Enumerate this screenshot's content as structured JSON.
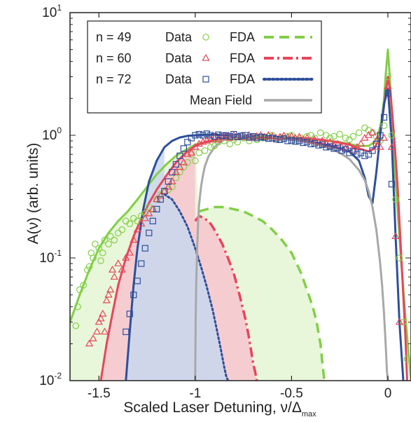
{
  "chart_data": {
    "type": "line",
    "title": "",
    "xlabel": "Scaled Laser Detuning, ν/Δ",
    "xlabel_sub": "max",
    "ylabel": "A(ν) (arb. units)",
    "xlim": [
      -1.65,
      0.12
    ],
    "ylim": [
      0.01,
      10
    ],
    "yscale": "log",
    "grid": false,
    "x_ticks": [
      -1.5,
      -1,
      -0.5,
      0
    ],
    "x_tick_labels": [
      "-1.5",
      "-1",
      "-0.5",
      "0"
    ],
    "y_ticks": [
      {
        "value": 0.01,
        "base": "10",
        "exp": "-2"
      },
      {
        "value": 0.1,
        "base": "10",
        "exp": "-1"
      },
      {
        "value": 1,
        "base": "10",
        "exp": "0"
      },
      {
        "value": 10,
        "base": "10",
        "exp": "1"
      }
    ],
    "legend_position": "top-left",
    "legend_rows": [
      {
        "n_label": "n = 49",
        "data_label": "Data",
        "fda_label": "FDA",
        "marker": "circle",
        "line": "dashed",
        "color": "#82cf47"
      },
      {
        "n_label": "n = 60",
        "data_label": "Data",
        "fda_label": "FDA",
        "marker": "triangle",
        "line": "dashdot",
        "color": "#e8455a"
      },
      {
        "n_label": "n = 72",
        "data_label": "Data",
        "fda_label": "FDA",
        "marker": "square",
        "line": "dotted",
        "color": "#2e4f9b"
      },
      {
        "n_label": "",
        "data_label": "",
        "fda_label": "Mean Field",
        "marker": "none",
        "line": "solid",
        "color": "#a8a8a8"
      }
    ],
    "series": [
      {
        "name": "n = 49 Data",
        "kind": "scatter",
        "marker": "circle",
        "color": "#82cf47",
        "x": [
          -1.62,
          -1.61,
          -1.6,
          -1.58,
          -1.56,
          -1.55,
          -1.54,
          -1.53,
          -1.52,
          -1.5,
          -1.49,
          -1.48,
          -1.47,
          -1.45,
          -1.44,
          -1.42,
          -1.4,
          -1.38,
          -1.36,
          -1.34,
          -1.32,
          -1.3,
          -1.28,
          -1.26,
          -1.24,
          -1.22,
          -1.2,
          -1.18,
          -1.16,
          -1.14,
          -1.12,
          -1.1,
          -1.08,
          -1.06,
          -1.04,
          -1.02,
          -1.0,
          -0.98,
          -0.95,
          -0.92,
          -0.9,
          -0.88,
          -0.85,
          -0.82,
          -0.8,
          -0.78,
          -0.75,
          -0.72,
          -0.7,
          -0.68,
          -0.65,
          -0.62,
          -0.6,
          -0.58,
          -0.55,
          -0.52,
          -0.5,
          -0.48,
          -0.45,
          -0.42,
          -0.4,
          -0.38,
          -0.35,
          -0.32,
          -0.3,
          -0.28,
          -0.25,
          -0.22,
          -0.2,
          -0.18,
          -0.15,
          -0.12,
          -0.1,
          -0.08,
          -0.06,
          -0.04,
          -0.02,
          0.0,
          0.02,
          0.04,
          0.06,
          0.08,
          0.1
        ],
        "y": [
          0.028,
          0.04,
          0.055,
          0.06,
          0.08,
          0.085,
          0.11,
          0.1,
          0.13,
          0.12,
          0.095,
          0.11,
          0.14,
          0.13,
          0.15,
          0.14,
          0.16,
          0.17,
          0.2,
          0.19,
          0.21,
          0.2,
          0.22,
          0.23,
          0.26,
          0.25,
          0.3,
          0.33,
          0.35,
          0.36,
          0.38,
          0.45,
          0.5,
          0.55,
          0.6,
          0.7,
          0.62,
          0.72,
          0.75,
          0.8,
          0.82,
          0.88,
          0.9,
          0.85,
          0.92,
          0.88,
          0.95,
          0.9,
          0.98,
          0.92,
          0.95,
          0.98,
          1.0,
          0.93,
          0.96,
          0.98,
          1.0,
          0.92,
          0.95,
          0.98,
          1.0,
          0.95,
          1.05,
          1.0,
          0.95,
          0.98,
          1.02,
          0.95,
          0.92,
          0.98,
          1.05,
          1.15,
          1.1,
          1.05,
          0.98,
          0.9,
          1.2,
          3.0,
          1.0,
          0.3,
          0.1,
          0.03,
          0.015
        ]
      },
      {
        "name": "n = 60 Data",
        "kind": "scatter",
        "marker": "triangle",
        "color": "#e8455a",
        "x": [
          -1.55,
          -1.53,
          -1.51,
          -1.5,
          -1.49,
          -1.48,
          -1.47,
          -1.46,
          -1.45,
          -1.44,
          -1.43,
          -1.42,
          -1.4,
          -1.38,
          -1.36,
          -1.34,
          -1.32,
          -1.3,
          -1.28,
          -1.26,
          -1.24,
          -1.22,
          -1.2,
          -1.18,
          -1.16,
          -1.14,
          -1.12,
          -1.1,
          -1.08,
          -1.06,
          -1.04,
          -1.02,
          -1.0,
          -0.98,
          -0.96,
          -0.94,
          -0.92,
          -0.9,
          -0.88,
          -0.86,
          -0.84,
          -0.82,
          -0.8,
          -0.78,
          -0.76,
          -0.74,
          -0.72,
          -0.7,
          -0.68,
          -0.66,
          -0.64,
          -0.62,
          -0.6,
          -0.58,
          -0.56,
          -0.54,
          -0.52,
          -0.5,
          -0.48,
          -0.46,
          -0.44,
          -0.42,
          -0.4,
          -0.38,
          -0.36,
          -0.34,
          -0.32,
          -0.3,
          -0.28,
          -0.26,
          -0.24,
          -0.22,
          -0.2,
          -0.18,
          -0.16,
          -0.14,
          -0.12,
          -0.1,
          -0.08,
          -0.06,
          -0.04,
          -0.02,
          0.0,
          0.02,
          0.04,
          0.06
        ],
        "y": [
          0.02,
          0.022,
          0.025,
          0.03,
          0.032,
          0.035,
          0.025,
          0.045,
          0.05,
          0.055,
          0.08,
          0.07,
          0.09,
          0.08,
          0.1,
          0.11,
          0.14,
          0.17,
          0.19,
          0.21,
          0.23,
          0.25,
          0.3,
          0.32,
          0.35,
          0.38,
          0.42,
          0.5,
          0.55,
          0.6,
          0.7,
          0.72,
          0.8,
          0.85,
          0.88,
          0.9,
          0.92,
          0.95,
          0.92,
          0.96,
          0.98,
          0.95,
          1.0,
          0.97,
          0.99,
          0.96,
          1.0,
          0.95,
          0.98,
          1.0,
          0.97,
          1.0,
          0.98,
          0.95,
          0.97,
          0.99,
          0.96,
          0.98,
          0.95,
          0.97,
          0.92,
          0.95,
          0.9,
          0.92,
          0.88,
          0.9,
          0.85,
          0.88,
          0.82,
          0.85,
          0.8,
          0.78,
          0.82,
          0.75,
          0.8,
          0.85,
          0.95,
          1.0,
          1.05,
          0.9,
          0.8,
          0.95,
          2.5,
          0.8,
          0.15,
          0.03
        ]
      },
      {
        "name": "n = 72 Data",
        "kind": "scatter",
        "marker": "square",
        "color": "#2e4f9b",
        "x": [
          -1.36,
          -1.34,
          -1.32,
          -1.3,
          -1.28,
          -1.26,
          -1.24,
          -1.22,
          -1.2,
          -1.18,
          -1.16,
          -1.14,
          -1.12,
          -1.1,
          -1.08,
          -1.06,
          -1.04,
          -1.02,
          -1.0,
          -0.98,
          -0.96,
          -0.94,
          -0.92,
          -0.9,
          -0.88,
          -0.86,
          -0.84,
          -0.82,
          -0.8,
          -0.78,
          -0.76,
          -0.74,
          -0.72,
          -0.7,
          -0.68,
          -0.66,
          -0.64,
          -0.62,
          -0.6,
          -0.58,
          -0.56,
          -0.54,
          -0.52,
          -0.5,
          -0.48,
          -0.46,
          -0.44,
          -0.42,
          -0.4,
          -0.38,
          -0.36,
          -0.34,
          -0.32,
          -0.3,
          -0.28,
          -0.26,
          -0.24,
          -0.22,
          -0.2,
          -0.18,
          -0.16,
          -0.14,
          -0.12,
          -0.1,
          -0.08,
          -0.06,
          -0.04,
          -0.02,
          0.0,
          0.02
        ],
        "y": [
          0.025,
          0.035,
          0.05,
          0.065,
          0.09,
          0.12,
          0.16,
          0.2,
          0.25,
          0.3,
          0.35,
          0.42,
          0.5,
          0.58,
          0.68,
          0.78,
          0.88,
          0.95,
          1.0,
          1.02,
          1.0,
          1.03,
          1.0,
          0.98,
          1.01,
          0.99,
          1.0,
          0.98,
          1.02,
          0.97,
          0.99,
          1.0,
          0.96,
          0.98,
          0.95,
          0.97,
          0.96,
          0.94,
          0.95,
          0.93,
          0.92,
          0.94,
          0.9,
          0.91,
          0.89,
          0.9,
          0.87,
          0.88,
          0.85,
          0.86,
          0.83,
          0.84,
          0.8,
          0.81,
          0.78,
          0.79,
          0.75,
          0.77,
          0.72,
          0.74,
          0.7,
          0.72,
          0.68,
          0.7,
          0.75,
          0.85,
          1.0,
          1.4,
          2.2,
          0.4
        ]
      },
      {
        "name": "n = 49 FDA",
        "kind": "line",
        "style": "solid",
        "color": "#82cf47",
        "x": [
          -1.65,
          -1.6,
          -1.55,
          -1.5,
          -1.45,
          -1.4,
          -1.35,
          -1.3,
          -1.25,
          -1.2,
          -1.15,
          -1.1,
          -1.05,
          -1.0,
          -0.95,
          -0.9,
          -0.85,
          -0.8,
          -0.75,
          -0.7,
          -0.65,
          -0.6,
          -0.55,
          -0.5,
          -0.45,
          -0.4,
          -0.35,
          -0.3,
          -0.25,
          -0.2,
          -0.15,
          -0.1,
          -0.07,
          -0.05,
          -0.03,
          -0.02,
          -0.01,
          0.0,
          0.01,
          0.02,
          0.03,
          0.05,
          0.07,
          0.09,
          0.11,
          0.12
        ],
        "y": [
          0.03,
          0.05,
          0.08,
          0.12,
          0.16,
          0.2,
          0.24,
          0.3,
          0.38,
          0.48,
          0.58,
          0.68,
          0.76,
          0.84,
          0.88,
          0.9,
          0.92,
          0.93,
          0.94,
          0.94,
          0.95,
          0.95,
          0.95,
          0.95,
          0.94,
          0.93,
          0.92,
          0.9,
          0.88,
          0.85,
          0.82,
          0.82,
          0.88,
          1.0,
          1.4,
          2.0,
          3.3,
          5.0,
          3.0,
          1.4,
          0.7,
          0.25,
          0.09,
          0.035,
          0.015,
          0.01
        ]
      },
      {
        "name": "n = 60 FDA",
        "kind": "line",
        "style": "solid",
        "color": "#e8455a",
        "x": [
          -1.49,
          -1.46,
          -1.43,
          -1.4,
          -1.36,
          -1.32,
          -1.28,
          -1.24,
          -1.2,
          -1.15,
          -1.1,
          -1.05,
          -1.0,
          -0.95,
          -0.9,
          -0.85,
          -0.8,
          -0.75,
          -0.7,
          -0.6,
          -0.5,
          -0.4,
          -0.3,
          -0.2,
          -0.15,
          -0.1,
          -0.07,
          -0.05,
          -0.03,
          -0.015,
          0.0,
          0.015,
          0.03,
          0.05,
          0.07,
          0.09,
          0.1
        ],
        "y": [
          0.01,
          0.02,
          0.035,
          0.06,
          0.1,
          0.15,
          0.21,
          0.28,
          0.36,
          0.47,
          0.6,
          0.72,
          0.82,
          0.88,
          0.92,
          0.95,
          0.97,
          0.98,
          0.98,
          0.97,
          0.96,
          0.94,
          0.9,
          0.84,
          0.78,
          0.74,
          0.78,
          0.9,
          1.3,
          2.0,
          3.0,
          2.1,
          1.1,
          0.4,
          0.1,
          0.025,
          0.01
        ]
      },
      {
        "name": "n = 72 FDA",
        "kind": "line",
        "style": "solid",
        "color": "#2e4f9b",
        "x": [
          -1.36,
          -1.34,
          -1.32,
          -1.3,
          -1.27,
          -1.24,
          -1.2,
          -1.16,
          -1.12,
          -1.08,
          -1.04,
          -1.0,
          -0.95,
          -0.9,
          -0.85,
          -0.8,
          -0.7,
          -0.6,
          -0.5,
          -0.4,
          -0.3,
          -0.2,
          -0.15,
          -0.12,
          -0.1,
          -0.08,
          -0.06,
          -0.04,
          -0.02,
          0.0,
          0.02,
          0.04,
          0.06,
          0.08
        ],
        "y": [
          0.01,
          0.025,
          0.06,
          0.12,
          0.25,
          0.42,
          0.62,
          0.8,
          0.9,
          0.96,
          0.99,
          1.0,
          1.01,
          1.01,
          1.0,
          1.0,
          0.98,
          0.96,
          0.92,
          0.88,
          0.82,
          0.74,
          0.62,
          0.45,
          0.32,
          0.28,
          0.5,
          1.0,
          1.8,
          2.4,
          0.9,
          0.15,
          0.03,
          0.01
        ]
      },
      {
        "name": "n = 49 FDA (tail)",
        "kind": "line",
        "style": "dashed",
        "color": "#82cf47",
        "x": [
          -0.98,
          -0.9,
          -0.85,
          -0.8,
          -0.75,
          -0.7,
          -0.65,
          -0.6,
          -0.55,
          -0.5,
          -0.45,
          -0.42,
          -0.39,
          -0.37,
          -0.35,
          -0.34,
          -0.33
        ],
        "y": [
          0.24,
          0.26,
          0.26,
          0.25,
          0.24,
          0.22,
          0.2,
          0.17,
          0.14,
          0.11,
          0.075,
          0.055,
          0.04,
          0.03,
          0.02,
          0.014,
          0.01
        ]
      },
      {
        "name": "n = 60 FDA (tail)",
        "kind": "line",
        "style": "dashdot",
        "color": "#e8455a",
        "x": [
          -1.0,
          -0.98,
          -0.95,
          -0.92,
          -0.89,
          -0.86,
          -0.83,
          -0.8,
          -0.77,
          -0.74,
          -0.72,
          -0.7,
          -0.69,
          -0.68
        ],
        "y": [
          0.2,
          0.22,
          0.21,
          0.19,
          0.16,
          0.13,
          0.1,
          0.075,
          0.05,
          0.032,
          0.022,
          0.014,
          0.012,
          0.01
        ]
      },
      {
        "name": "n = 72 FDA (tail)",
        "kind": "line",
        "style": "dotted",
        "color": "#2e4f9b",
        "x": [
          -1.16,
          -1.12,
          -1.08,
          -1.04,
          -1.0,
          -0.97,
          -0.94,
          -0.91,
          -0.89,
          -0.87,
          -0.85,
          -0.84,
          -0.83
        ],
        "y": [
          0.33,
          0.3,
          0.24,
          0.18,
          0.12,
          0.085,
          0.058,
          0.038,
          0.027,
          0.019,
          0.013,
          0.011,
          0.01
        ]
      },
      {
        "name": "Mean Field",
        "kind": "line",
        "style": "solid",
        "color": "#a8a8a8",
        "x": [
          -1.0,
          -0.998,
          -0.995,
          -0.99,
          -0.985,
          -0.98,
          -0.97,
          -0.96,
          -0.95,
          -0.93,
          -0.9,
          -0.87,
          -0.84,
          -0.8,
          -0.75,
          -0.7,
          -0.65,
          -0.6,
          -0.55,
          -0.5,
          -0.45,
          -0.4,
          -0.35,
          -0.3,
          -0.25,
          -0.2,
          -0.15,
          -0.12,
          -0.1,
          -0.08,
          -0.06,
          -0.04,
          -0.03,
          -0.02,
          -0.01,
          -0.005,
          0.0
        ],
        "y": [
          0.01,
          0.03,
          0.06,
          0.12,
          0.2,
          0.27,
          0.38,
          0.47,
          0.56,
          0.68,
          0.8,
          0.88,
          0.94,
          0.98,
          1.0,
          1.0,
          0.99,
          0.97,
          0.95,
          0.93,
          0.9,
          0.87,
          0.83,
          0.78,
          0.72,
          0.64,
          0.52,
          0.43,
          0.35,
          0.26,
          0.17,
          0.09,
          0.06,
          0.035,
          0.018,
          0.012,
          0.01
        ]
      }
    ]
  }
}
